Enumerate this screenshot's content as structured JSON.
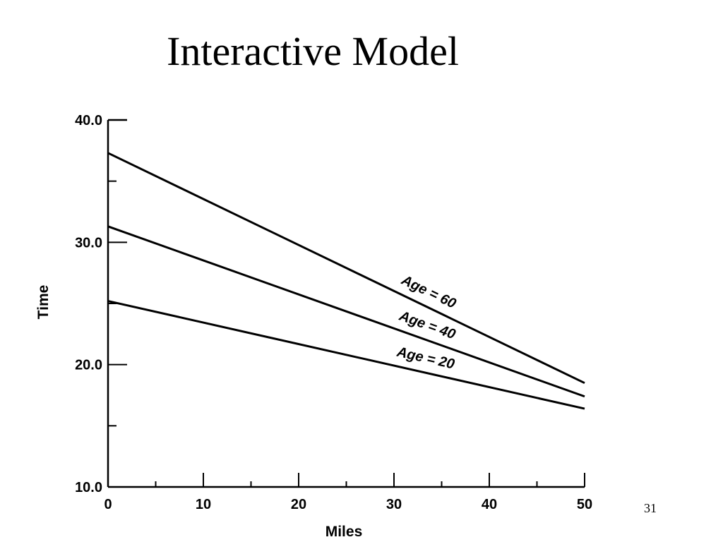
{
  "slide": {
    "title": "Interactive Model",
    "page_number": "31"
  },
  "chart_data": {
    "type": "line",
    "title": "",
    "xlabel": "Miles",
    "ylabel": "Time",
    "xlim": [
      0,
      50
    ],
    "ylim": [
      10,
      40
    ],
    "x_ticks": [
      "0",
      "10",
      "20",
      "30",
      "40",
      "50"
    ],
    "y_ticks": [
      "10.0",
      "20.0",
      "30.0",
      "40.0"
    ],
    "grid": false,
    "legend": "none",
    "x": [
      0,
      50
    ],
    "series": [
      {
        "name": "Age = 60",
        "values": [
          37.3,
          18.5
        ]
      },
      {
        "name": "Age = 40",
        "values": [
          31.3,
          17.4
        ]
      },
      {
        "name": "Age = 20",
        "values": [
          25.2,
          16.4
        ]
      }
    ]
  }
}
